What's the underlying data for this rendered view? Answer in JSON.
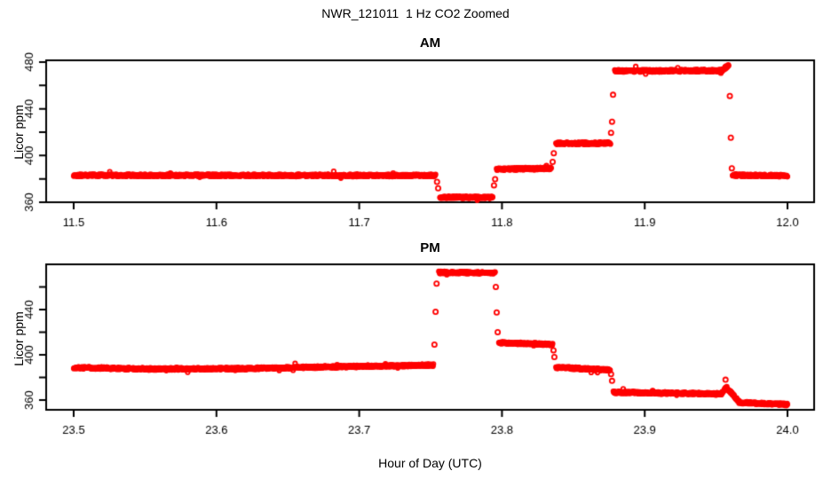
{
  "title": "NWR_121011  1 Hz CO2 Zoomed",
  "xlabel": "Hour of Day (UTC)",
  "point_color": "#FF0000",
  "axis_color": "#000000",
  "background_color": "#FFFFFF",
  "point_style": "open-circle",
  "chart_data": [
    {
      "type": "scatter",
      "title": "AM",
      "ylabel": "Licor ppm",
      "xlim": [
        11.5,
        12.0
      ],
      "ylim": [
        360,
        481.5
      ],
      "xticks": [
        11.5,
        11.6,
        11.7,
        11.8,
        11.9,
        12.0
      ],
      "xtick_labels": [
        "11.5",
        "11.6",
        "11.7",
        "11.8",
        "11.9",
        "12.0"
      ],
      "yticks": [
        360,
        380,
        400,
        420,
        440,
        460,
        480
      ],
      "yticks_major": [
        360,
        400,
        440,
        480
      ],
      "ytick_labels": [
        "360",
        "400",
        "440",
        "480"
      ],
      "grid": false,
      "segments": [
        {
          "x": [
            11.5,
            11.7535
          ],
          "y": [
            383.1,
            382.9
          ]
        },
        {
          "x": [
            11.7565,
            11.7935
          ],
          "y": [
            364.4,
            364.1
          ]
        },
        {
          "x": [
            11.7962,
            11.8345
          ],
          "y": [
            388.3,
            389.0
          ]
        },
        {
          "x": [
            11.8378,
            11.876
          ],
          "y": [
            410.4,
            410.6
          ]
        },
        {
          "x": [
            11.879,
            11.9545
          ],
          "y": [
            472.4,
            472.7
          ]
        },
        {
          "x": [
            11.9545,
            11.9588
          ],
          "y": [
            473.0,
            477.6
          ]
        },
        {
          "x": [
            11.9615,
            12.0
          ],
          "y": [
            383.2,
            382.8
          ]
        }
      ],
      "transition_points": [
        {
          "x": 11.7545,
          "y": 377.5
        },
        {
          "x": 11.7553,
          "y": 372.0
        },
        {
          "x": 11.7944,
          "y": 374.5
        },
        {
          "x": 11.7952,
          "y": 379.8
        },
        {
          "x": 11.8355,
          "y": 394.5
        },
        {
          "x": 11.8363,
          "y": 402.0
        },
        {
          "x": 11.8764,
          "y": 419.5
        },
        {
          "x": 11.8771,
          "y": 429.0
        },
        {
          "x": 11.8778,
          "y": 452.0
        },
        {
          "x": 11.9596,
          "y": 451.0
        },
        {
          "x": 11.9603,
          "y": 415.2
        },
        {
          "x": 11.961,
          "y": 389.0
        }
      ]
    },
    {
      "type": "scatter",
      "title": "PM",
      "ylabel": "Licor ppm",
      "xlim": [
        23.5,
        24.0
      ],
      "ylim": [
        351.4,
        480
      ],
      "xticks": [
        23.5,
        23.6,
        23.7,
        23.8,
        23.9,
        24.0
      ],
      "xtick_labels": [
        "23.5",
        "23.6",
        "23.7",
        "23.8",
        "23.9",
        "24.0"
      ],
      "yticks": [
        360,
        380,
        400,
        420,
        440,
        460
      ],
      "yticks_major": [
        360,
        400,
        440
      ],
      "ytick_labels": [
        "360",
        "400",
        "440"
      ],
      "grid": false,
      "segments": [
        {
          "x": [
            23.5,
            23.556
          ],
          "y": [
            388.7,
            387.5
          ]
        },
        {
          "x": [
            23.556,
            23.624
          ],
          "y": [
            387.5,
            387.9
          ]
        },
        {
          "x": [
            23.624,
            23.752
          ],
          "y": [
            388.1,
            391.0
          ]
        },
        {
          "x": [
            23.7558,
            23.7952
          ],
          "y": [
            472.9,
            472.5
          ]
        },
        {
          "x": [
            23.7978,
            23.8355
          ],
          "y": [
            410.9,
            409.1
          ]
        },
        {
          "x": [
            23.8378,
            23.8758
          ],
          "y": [
            388.9,
            386.7
          ]
        },
        {
          "x": [
            23.878,
            23.954
          ],
          "y": [
            366.9,
            365.5
          ]
        },
        {
          "x": [
            23.954,
            23.9572
          ],
          "y": [
            366.2,
            371.3
          ]
        },
        {
          "x": [
            23.9572,
            23.966
          ],
          "y": [
            371.3,
            358.6
          ]
        },
        {
          "x": [
            23.966,
            24.0
          ],
          "y": [
            357.9,
            356.1
          ]
        }
      ],
      "transition_points": [
        {
          "x": 23.7527,
          "y": 409.0
        },
        {
          "x": 23.7535,
          "y": 438.0
        },
        {
          "x": 23.7542,
          "y": 463.0
        },
        {
          "x": 23.7957,
          "y": 460.0
        },
        {
          "x": 23.7963,
          "y": 437.5
        },
        {
          "x": 23.797,
          "y": 420.0
        },
        {
          "x": 23.8361,
          "y": 404.0
        },
        {
          "x": 23.8367,
          "y": 398.0
        },
        {
          "x": 23.8764,
          "y": 383.0
        },
        {
          "x": 23.8771,
          "y": 377.0
        },
        {
          "x": 23.9566,
          "y": 378.0
        }
      ]
    }
  ]
}
